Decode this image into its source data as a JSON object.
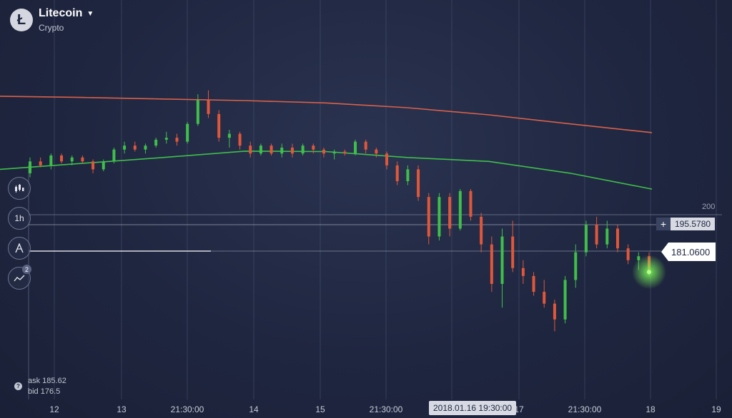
{
  "header": {
    "asset_name": "Litecoin",
    "asset_category": "Crypto",
    "logo_glyph": "Ł"
  },
  "toolbar": {
    "chart_type_icon": "candlestick-icon",
    "timeframe_label": "1h",
    "drawing_icon": "drawing-tool-icon",
    "indicators_icon": "indicators-icon",
    "indicators_badge": "2"
  },
  "quotes": {
    "ask": "ask 185.62",
    "bid": "bid 176.5"
  },
  "price_tags": {
    "upper_value": "195.5780",
    "current_value": "181.0600",
    "level_label": "200"
  },
  "crosshair": {
    "time_label": "2018.01.16 19:30:00"
  },
  "colors": {
    "up": "#3fbf4a",
    "down": "#e0573a",
    "ma_fast": "#3fbf4a",
    "ma_slow": "#d9614a",
    "background": "#1f2640"
  },
  "chart_data": {
    "type": "line",
    "x_tick_labels": [
      "12",
      "13",
      "21:30:00",
      "14",
      "15",
      "21:30:00",
      "17",
      "21:30:00",
      "18",
      "19"
    ],
    "ylim": [
      165,
      230
    ],
    "grid": true,
    "series": [
      {
        "values": [
          207,
          208.5,
          210,
          211.6,
          211.5,
          210,
          209,
          206,
          202
        ]
      },
      {
        "values": [
          225.5,
          225.2,
          224.8,
          224.4,
          223.8,
          222.6,
          220.8,
          218.5,
          216.3
        ]
      }
    ],
    "candles": [
      [
        206.0,
        210.0,
        205.0,
        209.0
      ],
      [
        209.0,
        210.0,
        207.5,
        208.0
      ],
      [
        208.0,
        211.0,
        207.0,
        210.5
      ],
      [
        210.5,
        211.0,
        208.5,
        209.0
      ],
      [
        209.0,
        210.5,
        208.0,
        210.0
      ],
      [
        210.0,
        210.5,
        208.5,
        209.0
      ],
      [
        209.0,
        209.5,
        206.0,
        207.0
      ],
      [
        207.0,
        209.5,
        206.5,
        209.0
      ],
      [
        209.0,
        212.5,
        208.5,
        212.0
      ],
      [
        212.0,
        214.0,
        211.0,
        213.0
      ],
      [
        213.0,
        214.0,
        211.5,
        212.0
      ],
      [
        212.0,
        213.5,
        211.0,
        213.0
      ],
      [
        213.0,
        215.0,
        212.5,
        214.5
      ],
      [
        214.5,
        216.5,
        213.5,
        215.0
      ],
      [
        215.0,
        216.0,
        213.0,
        214.0
      ],
      [
        214.0,
        219.0,
        213.5,
        218.5
      ],
      [
        218.5,
        226.0,
        218.0,
        224.5
      ],
      [
        224.5,
        227.0,
        220.0,
        221.0
      ],
      [
        221.0,
        222.0,
        214.0,
        215.0
      ],
      [
        215.0,
        217.0,
        212.5,
        216.0
      ],
      [
        216.0,
        216.5,
        212.0,
        213.0
      ],
      [
        213.0,
        214.0,
        210.0,
        211.0
      ],
      [
        211.0,
        213.5,
        210.5,
        213.0
      ],
      [
        213.0,
        213.5,
        210.5,
        211.0
      ],
      [
        211.0,
        213.5,
        210.0,
        212.5
      ],
      [
        212.5,
        213.5,
        210.0,
        211.0
      ],
      [
        211.0,
        213.5,
        210.5,
        213.0
      ],
      [
        213.0,
        213.5,
        211.0,
        212.0
      ],
      [
        212.0,
        212.5,
        210.0,
        211.0
      ],
      [
        211.0,
        212.0,
        209.5,
        211.5
      ],
      [
        211.5,
        212.0,
        210.5,
        211.0
      ],
      [
        211.0,
        214.5,
        210.5,
        214.0
      ],
      [
        214.0,
        214.5,
        211.0,
        212.0
      ],
      [
        212.0,
        212.5,
        210.0,
        211.0
      ],
      [
        211.0,
        211.5,
        207.0,
        208.0
      ],
      [
        208.0,
        209.0,
        203.0,
        204.0
      ],
      [
        204.0,
        208.0,
        203.0,
        207.0
      ],
      [
        207.0,
        208.0,
        199.0,
        200.0
      ],
      [
        200.0,
        201.0,
        188.0,
        190.0
      ],
      [
        190.0,
        201.0,
        189.0,
        200.0
      ],
      [
        200.0,
        201.0,
        190.0,
        192.0
      ],
      [
        192.0,
        202.0,
        191.5,
        201.5
      ],
      [
        201.5,
        202.0,
        194.0,
        195.0
      ],
      [
        195.0,
        196.0,
        186.0,
        188.0
      ],
      [
        188.0,
        190.0,
        176.0,
        178.0
      ],
      [
        178.0,
        192.0,
        172.0,
        190.0
      ],
      [
        190.0,
        194.0,
        181.0,
        182.0
      ],
      [
        182.0,
        184.0,
        178.0,
        180.0
      ],
      [
        180.0,
        181.0,
        175.0,
        176.0
      ],
      [
        176.0,
        179.0,
        172.0,
        173.0
      ],
      [
        173.0,
        174.0,
        166.0,
        169.0
      ],
      [
        169.0,
        180.0,
        168.0,
        179.0
      ],
      [
        179.0,
        188.0,
        177.0,
        186.0
      ],
      [
        186.0,
        194.0,
        185.0,
        193.0
      ],
      [
        193.0,
        195.0,
        187.0,
        188.0
      ],
      [
        188.0,
        194.0,
        187.0,
        192.0
      ],
      [
        192.0,
        193.0,
        186.0,
        187.0
      ],
      [
        187.0,
        188.0,
        183.0,
        184.0
      ],
      [
        184.0,
        186.0,
        181.5,
        185.0
      ],
      [
        185.0,
        186.0,
        180.0,
        181.0
      ]
    ]
  }
}
